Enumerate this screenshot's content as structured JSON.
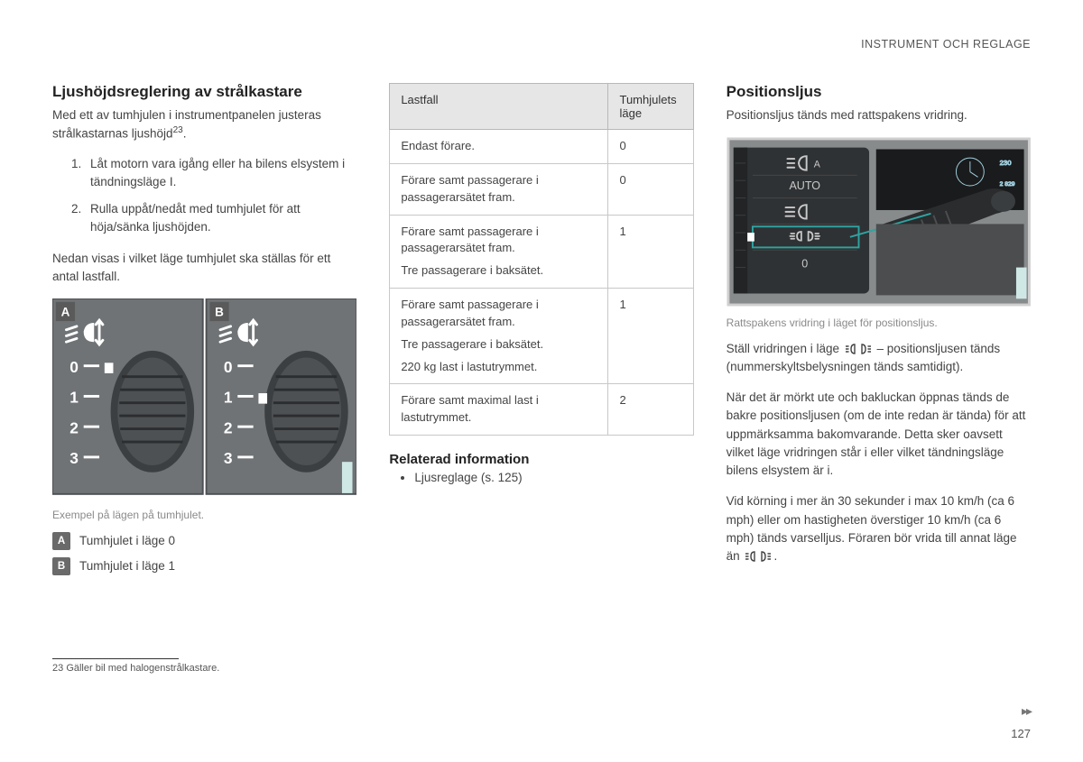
{
  "breadcrumb": "INSTRUMENT OCH REGLAGE",
  "col1": {
    "heading": "Ljushöjdsreglering av strålkastare",
    "intro": "Med ett av tumhjulen i instrumentpanelen justeras strålkastarnas ljushöjd",
    "footref": "23",
    "steps": [
      "Låt motorn vara igång eller ha bilens elsystem i tändningsläge I.",
      "Rulla uppåt/nedåt med tumhjulet för att höja/sänka ljushöjden."
    ],
    "below": "Nedan visas i vilket läge tumhjulet ska ställas för ett antal lastfall.",
    "dial_marks": [
      "0",
      "1",
      "2",
      "3"
    ],
    "figcap": "Exempel på lägen på tumhjulet.",
    "badges": [
      {
        "l": "A",
        "t": "Tumhjulet i läge 0"
      },
      {
        "l": "B",
        "t": "Tumhjulet i läge 1"
      }
    ],
    "footnote": "Gäller bil med halogenstrålkastare."
  },
  "col2": {
    "th1": "Lastfall",
    "th2": "Tumhjulets läge",
    "rows": [
      {
        "c1": [
          "Endast förare."
        ],
        "c2": "0"
      },
      {
        "c1": [
          "Förare samt passagerare i passagerarsätet fram."
        ],
        "c2": "0"
      },
      {
        "c1": [
          "Förare samt passagerare i passagerarsätet fram.",
          "Tre passagerare i baksätet."
        ],
        "c2": "1"
      },
      {
        "c1": [
          "Förare samt passagerare i passagerarsätet fram.",
          "Tre passagerare i baksätet.",
          "220 kg last i lastutrymmet."
        ],
        "c2": "1"
      },
      {
        "c1": [
          "Förare samt maximal last i lastutrymmet."
        ],
        "c2": "2"
      }
    ],
    "rel_h": "Relaterad information",
    "rel_items": [
      "Ljusreglage (s. 125)"
    ]
  },
  "col3": {
    "heading": "Positionsljus",
    "intro": "Positionsljus tänds med rattspakens vridring.",
    "menu": [
      "AUTO"
    ],
    "menu_last": "0",
    "figcap": "Rattspakens vridring i läget för positionsljus.",
    "p1a": "Ställ vridringen i läge ",
    "p1b": " – positionsljusen tänds (nummerskyltsbelysningen tänds samtidigt).",
    "p2": "När det är mörkt ute och bakluckan öppnas tänds de bakre positionsljusen (om de inte redan är tända) för att uppmärksamma bakomvarande. Detta sker oavsett vilket läge vridringen står i eller vilket tändningsläge bilens elsystem är i.",
    "p3a": "Vid körning i mer än 30 sekunder i max 10 km/h (ca 6 mph) eller om hastigheten överstiger 10 km/h (ca 6 mph) tänds varselljus. Föraren bör vrida till annat läge än ",
    "p3b": "."
  },
  "pageno": "127",
  "colors": {
    "panel": "#6f7376",
    "panel_dark": "#595d60",
    "white": "#ffffff",
    "accent": "#2fa3a0",
    "gray_txt": "#c9c9c9",
    "lever_dark": "#2a2c2e"
  }
}
